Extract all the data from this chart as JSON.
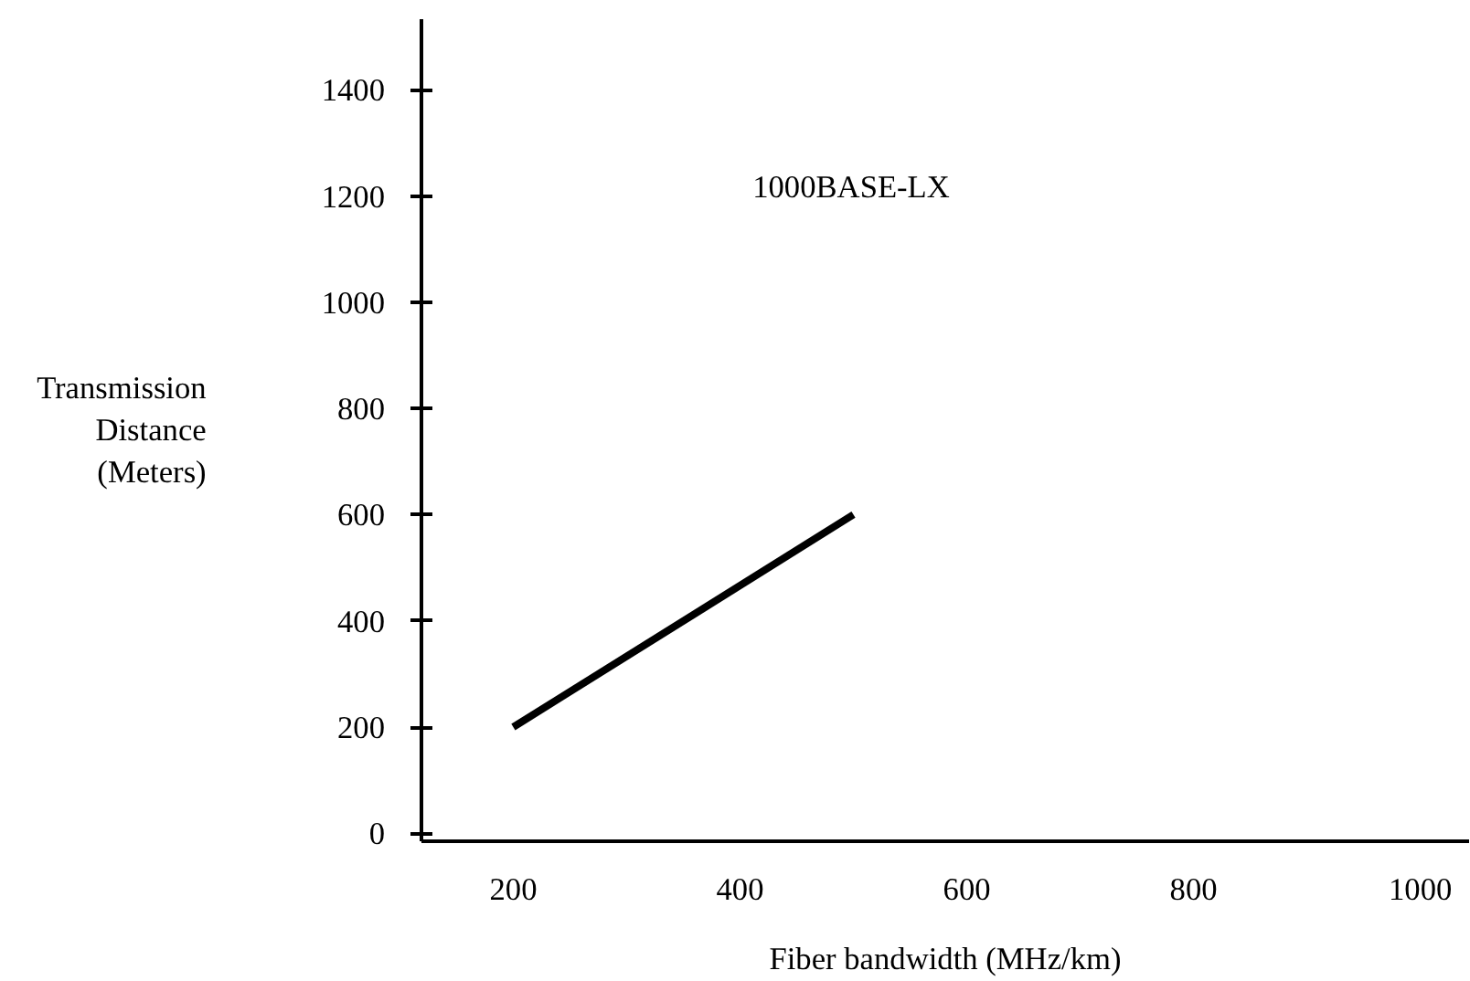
{
  "chart_data": {
    "type": "line",
    "xlabel": "Fiber bandwidth (MHz/km)",
    "ylabel": "Transmission Distance (Meters)",
    "x": [
      200,
      500
    ],
    "series": [
      {
        "color": "#000000",
        "values": [
          200,
          600
        ]
      }
    ],
    "annotations": [
      "1000BASE-LX"
    ],
    "xlim": [
      119,
      1043
    ],
    "ylim": [
      -15,
      1533
    ],
    "xticks": [
      200,
      400,
      600,
      800,
      1000
    ],
    "yticks": [
      0,
      200,
      400,
      600,
      800,
      1000,
      1200,
      1400
    ],
    "grid": false,
    "line_style": "solid",
    "marker": "none"
  }
}
